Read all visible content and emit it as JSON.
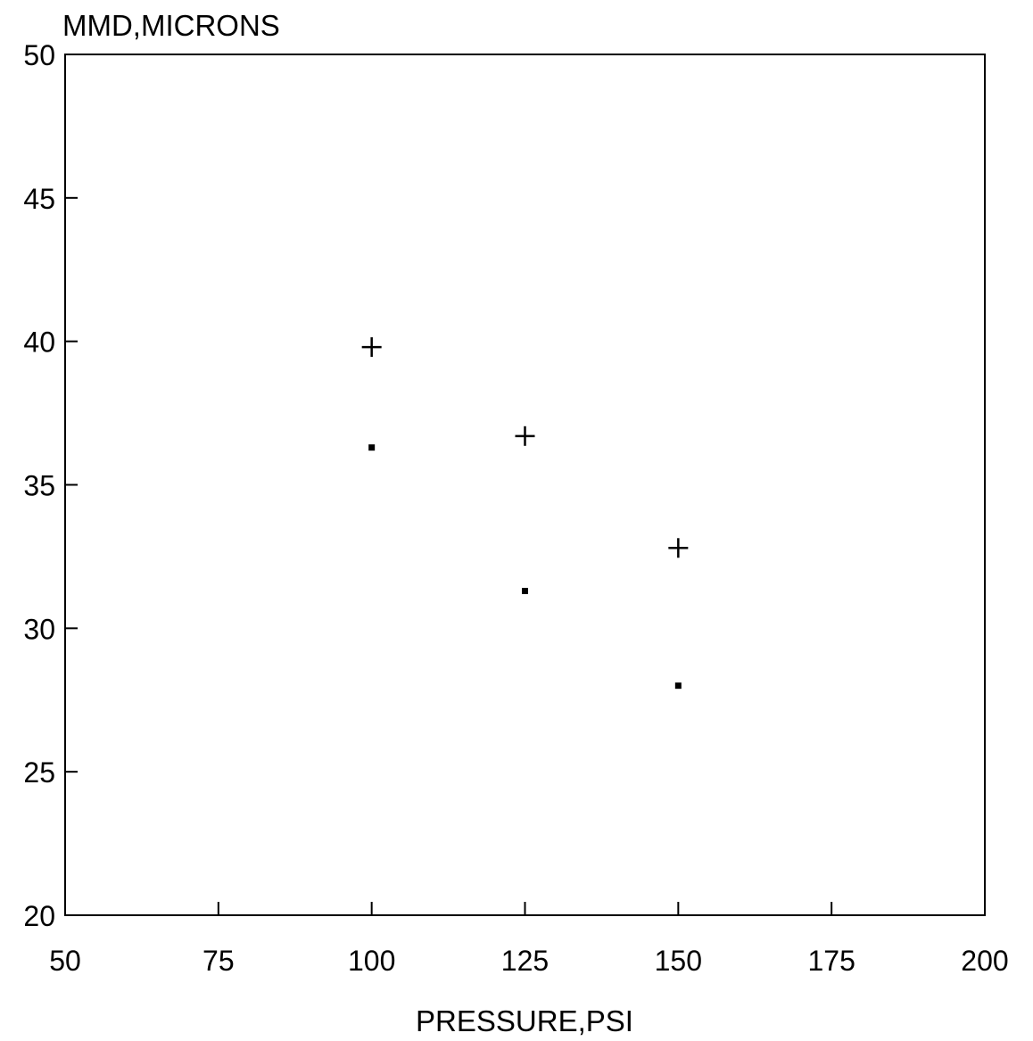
{
  "chart_data": {
    "type": "scatter",
    "title": "",
    "xlabel": "PRESSURE,PSI",
    "ylabel": "MMD,MICRONS",
    "xlim": [
      50,
      200
    ],
    "ylim": [
      20,
      50
    ],
    "x_ticks": [
      50,
      75,
      100,
      125,
      150,
      175,
      200
    ],
    "x_tick_labels": [
      "50",
      "75",
      "100",
      "125",
      "150",
      "175",
      "200"
    ],
    "y_ticks": [
      20,
      25,
      30,
      35,
      40,
      45,
      50
    ],
    "y_tick_labels": [
      "20",
      "25",
      "30",
      "35",
      "40",
      "45",
      "50"
    ],
    "grid": false,
    "legend": "none",
    "series": [
      {
        "marker": "plus",
        "color": "#000000",
        "points": [
          {
            "x": 100,
            "y": 39.8
          },
          {
            "x": 125,
            "y": 36.7
          },
          {
            "x": 150,
            "y": 32.8
          }
        ]
      },
      {
        "marker": "dot",
        "color": "#000000",
        "points": [
          {
            "x": 100,
            "y": 36.3
          },
          {
            "x": 125,
            "y": 31.3
          },
          {
            "x": 150,
            "y": 28.0
          }
        ]
      }
    ]
  }
}
